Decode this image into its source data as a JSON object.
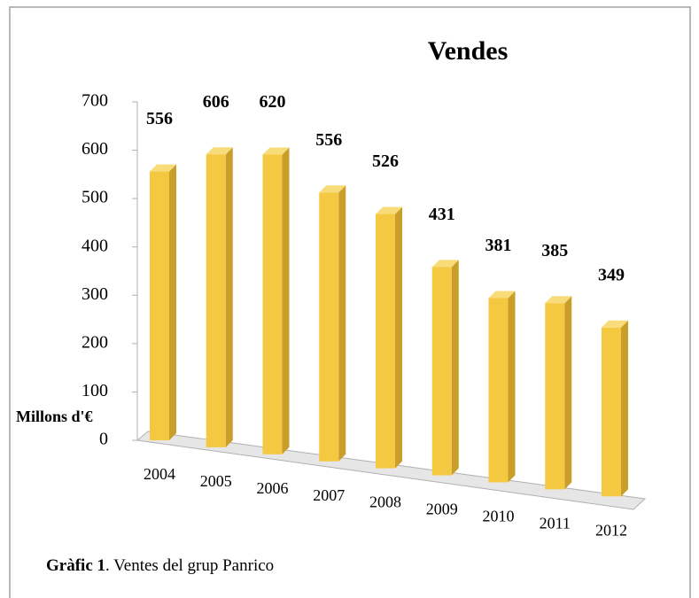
{
  "chart_data": {
    "type": "bar3d",
    "title": "Vendes",
    "y_label": "Millons d'€",
    "categories": [
      "2004",
      "2005",
      "2006",
      "2007",
      "2008",
      "2009",
      "2010",
      "2011",
      "2012"
    ],
    "values": [
      556,
      606,
      620,
      556,
      526,
      431,
      381,
      385,
      349
    ],
    "color": "#f5c842",
    "ylim": [
      0,
      700
    ],
    "yticks": [
      0,
      100,
      200,
      300,
      400,
      500,
      600,
      700
    ]
  },
  "caption": {
    "label": "Gràfic 1",
    "text": ". Ventes del grup Panrico"
  }
}
